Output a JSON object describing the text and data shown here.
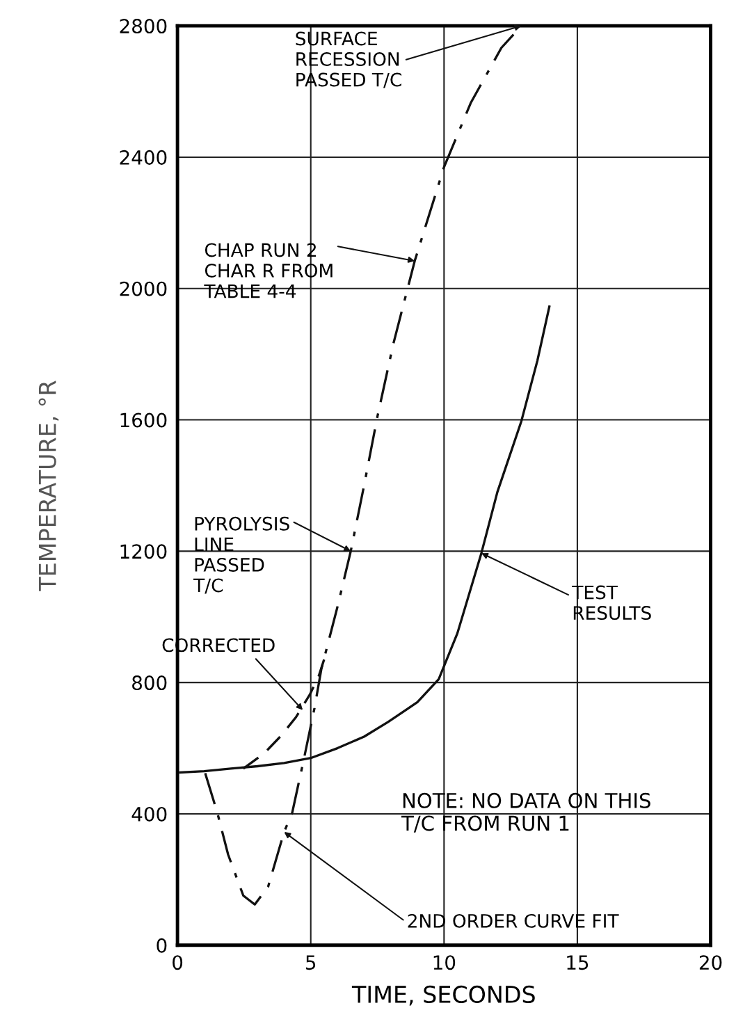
{
  "chart_data": {
    "type": "line",
    "xlabel": "TIME, SECONDS",
    "ylabel": "TEMPERATURE, °R",
    "xlim": [
      0,
      20
    ],
    "xticks": [
      0,
      5,
      10,
      15,
      20
    ],
    "ylim": [
      0,
      2800
    ],
    "yticks": [
      0,
      400,
      800,
      1200,
      1600,
      2000,
      2400,
      2800
    ],
    "grid": true,
    "legend": false,
    "marker": "none",
    "series": [
      {
        "color": "#111111",
        "line_style": "solid",
        "x": [
          0.1,
          1,
          2,
          3,
          4,
          5,
          6,
          7,
          7.9,
          9,
          9.8,
          10.5,
          11.4,
          12,
          12.9,
          13.5,
          13.95
        ],
        "values": [
          526,
          530,
          538,
          545,
          555,
          570,
          600,
          635,
          680,
          740,
          810,
          950,
          1194,
          1380,
          1596,
          1780,
          1945
        ]
      },
      {
        "color": "#111111",
        "line_style": "dashdot",
        "x": [
          1.04,
          1.5,
          1.9,
          2.47,
          2.9,
          3.4,
          4.0,
          4.3,
          4.75,
          5.14,
          5.4,
          6.0,
          6.5,
          7.0,
          7.5,
          8.1,
          8.9,
          10.0,
          11.0,
          12.15,
          12.9
        ],
        "values": [
          524,
          402,
          276,
          151,
          124,
          178,
          345,
          402,
          570,
          722,
          842,
          1030,
          1200,
          1400,
          1610,
          1832,
          2084,
          2370,
          2565,
          2733,
          2800
        ]
      },
      {
        "color": "#111111",
        "line_style": "dashed",
        "x": [
          2.47,
          3.25,
          3.9,
          4.45,
          4.97,
          5.3,
          5.5
        ],
        "values": [
          538,
          584,
          639,
          695,
          764,
          820,
          870
        ]
      }
    ],
    "annotations": [
      {
        "text": "SURFACE\nRECESSION\nPASSED T/C",
        "x": 12.9,
        "y": 2800
      },
      {
        "text": "CHAP RUN 2\nCHAR R FROM\nTABLE 4-4",
        "x": 8.9,
        "y": 2084
      },
      {
        "text": "PYROLYSIS\nLINE\nPASSED\nT/C",
        "x": 6.5,
        "y": 1200
      },
      {
        "text": "CORRECTED",
        "x": 4.7,
        "y": 716
      },
      {
        "text": "TEST\nRESULTS",
        "x": 11.4,
        "y": 1194
      },
      {
        "text": "2ND ORDER CURVE FIT",
        "x": 4.0,
        "y": 345
      },
      "NOTE: NO DATA ON THIS\nT/C FROM RUN 1"
    ]
  }
}
